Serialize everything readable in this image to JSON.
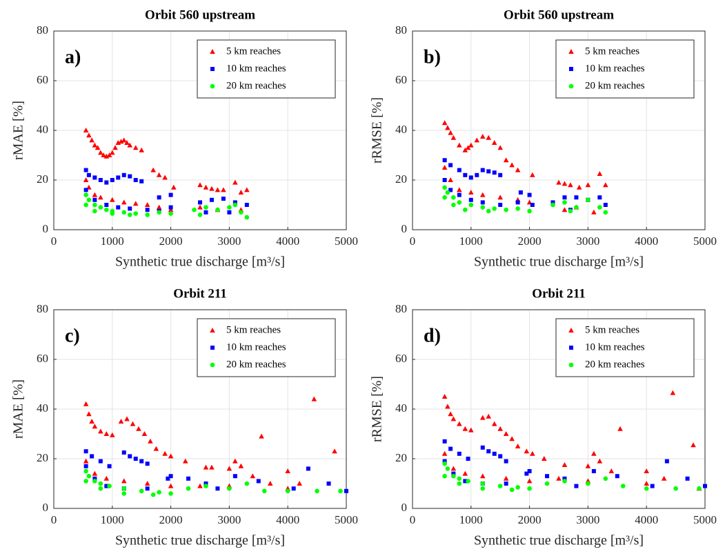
{
  "chart_data": [
    {
      "type": "scatter",
      "title": "Orbit 560 upstream",
      "panel_label": "a)",
      "x_label": "Synthetic true discharge [m³/s]",
      "y_label": "rMAE [%]",
      "xlim": [
        0,
        5000
      ],
      "xticks": [
        0,
        1000,
        2000,
        3000,
        4000,
        5000
      ],
      "ylim": [
        0,
        80
      ],
      "yticks": [
        0,
        20,
        40,
        60,
        80
      ],
      "grid": true,
      "legend": "upper right",
      "series": [
        {
          "name": "5 km reaches",
          "color": "#ff0000",
          "marker": "triangle",
          "x": [
            550,
            600,
            650,
            700,
            750,
            800,
            850,
            900,
            950,
            1000,
            1050,
            1100,
            1150,
            1200,
            1250,
            1300,
            1400,
            1500,
            1700,
            1800,
            1900,
            2050,
            2500,
            2600,
            2700,
            2800,
            2900,
            3100,
            3200,
            3300,
            550,
            600,
            700,
            800,
            1000,
            1200,
            1400,
            1600,
            1800,
            2000,
            2500,
            2800,
            3200
          ],
          "values": [
            40,
            38,
            36,
            34,
            33,
            31,
            30,
            29.5,
            30,
            31,
            33,
            35,
            35.5,
            36,
            35,
            34,
            33,
            32,
            24,
            22,
            21,
            17,
            18,
            17,
            16.5,
            16,
            16,
            19,
            15,
            16,
            20,
            17,
            14,
            13,
            12,
            11,
            10.5,
            10,
            9,
            8,
            9,
            8,
            8
          ]
        },
        {
          "name": "10 km reaches",
          "color": "#0000ff",
          "marker": "square",
          "x": [
            550,
            600,
            700,
            800,
            900,
            1000,
            1100,
            1200,
            1300,
            1400,
            1500,
            550,
            700,
            900,
            1100,
            1300,
            1600,
            1800,
            2000,
            1800,
            2000,
            2500,
            2700,
            2900,
            3100,
            3300,
            2600,
            3000
          ],
          "values": [
            24,
            22,
            21,
            20,
            19,
            20,
            21,
            22,
            21.5,
            20,
            19.5,
            16,
            12,
            10,
            9,
            8.5,
            8,
            7.5,
            9,
            13,
            14,
            11,
            12,
            12.5,
            11,
            10,
            7,
            7
          ]
        },
        {
          "name": "20 km reaches",
          "color": "#00ff00",
          "marker": "circle",
          "x": [
            550,
            600,
            700,
            800,
            900,
            1000,
            1200,
            1400,
            1600,
            1800,
            2000,
            550,
            700,
            1000,
            1300,
            2400,
            2600,
            2800,
            3000,
            3200,
            3300,
            2500,
            3100
          ],
          "values": [
            14,
            12,
            10,
            9,
            8,
            7.5,
            7,
            6.5,
            6,
            7,
            6.5,
            10,
            7.5,
            6.5,
            6,
            8,
            9,
            8,
            9,
            7,
            5,
            6,
            10
          ]
        }
      ]
    },
    {
      "type": "scatter",
      "title": "Orbit 560 upstream",
      "panel_label": "b)",
      "x_label": "Synthetic true discharge [m³/s]",
      "y_label": "rRMSE [%]",
      "xlim": [
        0,
        5000
      ],
      "xticks": [
        0,
        1000,
        2000,
        3000,
        4000,
        5000
      ],
      "ylim": [
        0,
        80
      ],
      "yticks": [
        0,
        20,
        40,
        60,
        80
      ],
      "grid": true,
      "legend": "upper right",
      "series": [
        {
          "name": "5 km reaches",
          "color": "#ff0000",
          "marker": "triangle",
          "x": [
            550,
            600,
            650,
            700,
            800,
            900,
            950,
            1000,
            1100,
            1200,
            1300,
            1400,
            1500,
            1600,
            1700,
            1800,
            2050,
            2500,
            2600,
            2700,
            2850,
            3000,
            3200,
            3300,
            550,
            650,
            800,
            1000,
            1200,
            1500,
            1800,
            2000,
            2600,
            2800,
            3100
          ],
          "values": [
            43,
            41,
            39,
            37,
            34,
            32,
            33,
            34,
            36,
            37.5,
            37,
            35,
            33,
            28,
            26,
            24,
            22,
            19,
            18.5,
            18,
            17,
            18,
            22.5,
            18,
            25,
            20,
            16,
            15,
            14,
            13,
            12,
            11,
            8,
            9,
            7
          ]
        },
        {
          "name": "10 km reaches",
          "color": "#0000ff",
          "marker": "square",
          "x": [
            550,
            650,
            800,
            900,
            1000,
            1100,
            1200,
            1300,
            1400,
            1500,
            550,
            650,
            800,
            1000,
            1200,
            1500,
            1800,
            1850,
            2000,
            2050,
            2400,
            2600,
            2800,
            3000,
            3200,
            3300,
            2700
          ],
          "values": [
            28,
            26,
            24,
            22,
            21,
            22,
            24,
            23.5,
            23,
            22,
            20,
            16,
            14,
            12,
            11,
            10,
            11,
            15,
            14,
            10,
            11,
            13,
            13,
            12,
            13,
            10,
            8
          ]
        },
        {
          "name": "20 km reaches",
          "color": "#00ff00",
          "marker": "circle",
          "x": [
            550,
            600,
            700,
            800,
            1000,
            1200,
            1400,
            1600,
            1800,
            2000,
            550,
            700,
            900,
            1300,
            2400,
            2600,
            2800,
            3000,
            3200,
            3300,
            2700
          ],
          "values": [
            17,
            15,
            13,
            11,
            10,
            9,
            8.5,
            8,
            8.5,
            7.5,
            13,
            10,
            8,
            7.5,
            10,
            11,
            9,
            12,
            9,
            7,
            7.5
          ]
        }
      ]
    },
    {
      "type": "scatter",
      "title": "Orbit 211",
      "panel_label": "c)",
      "x_label": "Synthetic true discharge [m³/s]",
      "y_label": "rMAE [%]",
      "xlim": [
        0,
        5000
      ],
      "xticks": [
        0,
        1000,
        2000,
        3000,
        4000,
        5000
      ],
      "ylim": [
        0,
        80
      ],
      "yticks": [
        0,
        20,
        40,
        60,
        80
      ],
      "grid": true,
      "legend": "upper right",
      "series": [
        {
          "name": "5 km reaches",
          "color": "#ff0000",
          "marker": "triangle",
          "x": [
            550,
            600,
            650,
            700,
            800,
            900,
            1000,
            1150,
            1250,
            1350,
            1450,
            1550,
            1650,
            1750,
            1900,
            2000,
            2250,
            2600,
            2700,
            3000,
            3100,
            3200,
            3550,
            3400,
            4000,
            4450,
            4800,
            4200,
            3700,
            550,
            700,
            900,
            1200,
            1600,
            2000,
            2500,
            3000,
            4000
          ],
          "values": [
            42,
            38,
            35,
            33,
            31,
            30,
            29.5,
            35,
            36,
            34,
            32,
            30,
            27,
            24,
            22,
            21,
            19,
            16.5,
            16.5,
            16,
            19,
            17,
            29,
            13,
            15,
            44,
            23,
            10,
            10,
            19,
            14,
            12,
            11,
            10,
            9,
            9,
            9,
            8
          ]
        },
        {
          "name": "10 km reaches",
          "color": "#0000ff",
          "marker": "square",
          "x": [
            550,
            650,
            800,
            950,
            1200,
            1300,
            1400,
            1500,
            1600,
            1950,
            2000,
            550,
            700,
            900,
            1200,
            1600,
            2300,
            2600,
            3100,
            3500,
            4350,
            4100,
            4700,
            5000,
            2800
          ],
          "values": [
            23,
            21,
            19,
            17,
            22.5,
            21,
            20,
            19,
            18,
            12,
            13,
            17,
            12,
            9,
            8,
            8,
            12,
            10,
            13,
            11,
            16,
            8,
            10,
            7,
            8
          ]
        },
        {
          "name": "20 km reaches",
          "color": "#00ff00",
          "marker": "circle",
          "x": [
            550,
            600,
            700,
            800,
            950,
            1200,
            1500,
            1800,
            2000,
            2300,
            2600,
            3000,
            3300,
            3600,
            550,
            800,
            1200,
            1700,
            4000,
            4500,
            4900
          ],
          "values": [
            15,
            13,
            11,
            10,
            9,
            8,
            7,
            6.5,
            6,
            8,
            9,
            8,
            10,
            7,
            11,
            8,
            6,
            5.5,
            7,
            7,
            7
          ]
        }
      ]
    },
    {
      "type": "scatter",
      "title": "Orbit 211",
      "panel_label": "d)",
      "x_label": "Synthetic true discharge [m³/s]",
      "y_label": "rRMSE [%]",
      "xlim": [
        0,
        5000
      ],
      "xticks": [
        0,
        1000,
        2000,
        3000,
        4000,
        5000
      ],
      "ylim": [
        0,
        80
      ],
      "yticks": [
        0,
        20,
        40,
        60,
        80
      ],
      "grid": true,
      "legend": "upper right",
      "series": [
        {
          "name": "5 km reaches",
          "color": "#ff0000",
          "marker": "triangle",
          "x": [
            550,
            600,
            650,
            700,
            800,
            900,
            1000,
            1200,
            1300,
            1400,
            1500,
            1600,
            1700,
            1800,
            1950,
            2050,
            2250,
            2600,
            3000,
            3100,
            3200,
            3550,
            3400,
            4000,
            4450,
            4800,
            4300,
            4900,
            550,
            700,
            900,
            1200,
            1600,
            2000,
            2500,
            3000,
            4000
          ],
          "values": [
            45,
            41,
            38,
            36,
            34,
            32,
            31.5,
            36.5,
            37,
            34,
            32,
            30,
            28,
            25,
            23,
            22,
            20,
            17.5,
            17,
            22,
            19,
            32,
            15,
            15,
            46.5,
            25.5,
            12,
            8,
            22,
            16,
            14,
            13,
            12,
            11,
            12,
            11,
            10
          ]
        },
        {
          "name": "10 km reaches",
          "color": "#0000ff",
          "marker": "square",
          "x": [
            550,
            650,
            800,
            950,
            1200,
            1300,
            1400,
            1500,
            1600,
            1950,
            2000,
            550,
            700,
            900,
            1200,
            1600,
            2300,
            2600,
            3100,
            3500,
            4350,
            4100,
            4700,
            5000,
            2800
          ],
          "values": [
            27,
            24,
            22,
            20,
            24.5,
            23,
            22,
            21,
            19,
            14,
            15,
            19,
            14,
            11,
            10,
            10,
            13,
            12,
            15,
            13,
            19,
            9,
            12,
            9,
            9
          ]
        },
        {
          "name": "20 km reaches",
          "color": "#00ff00",
          "marker": "circle",
          "x": [
            550,
            600,
            700,
            800,
            950,
            1200,
            1500,
            1800,
            2000,
            2300,
            2600,
            3000,
            3300,
            3600,
            550,
            800,
            1200,
            1700,
            4000,
            4500,
            4900
          ],
          "values": [
            18,
            16,
            13,
            12,
            11,
            10,
            9,
            8.5,
            8,
            10,
            11,
            10,
            12,
            9,
            13,
            10,
            8,
            7.5,
            8,
            8,
            8
          ]
        }
      ]
    }
  ]
}
